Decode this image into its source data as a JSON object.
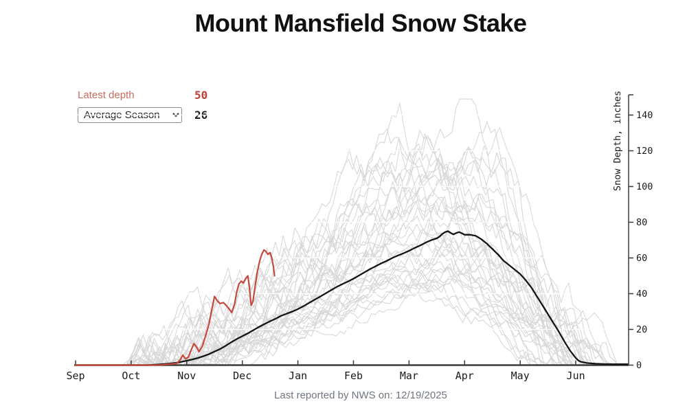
{
  "title": "Mount Mansfield Snow Stake",
  "controls": {
    "latest_depth_label": "Latest depth",
    "latest_depth_value": "50",
    "season_select": {
      "selected": "Average Season",
      "options": [
        "Average Season"
      ]
    },
    "average_value": "26"
  },
  "footer": {
    "text": "Last reported by NWS on: 12/19/2025"
  },
  "colors": {
    "current_season": "#c5483c",
    "latest_label": "#ca6a5e",
    "latest_value": "#c0413a",
    "average_season": "#141414",
    "historical": "#d6d6d6",
    "grid": "#ffffff",
    "axis": "#3a3a3a",
    "tick_text": "#1a1a1a",
    "footer_text": "#6f7680"
  },
  "chart_data": {
    "type": "line",
    "title": "Mount Mansfield Snow Stake",
    "x_axis": {
      "tick_labels": [
        "Sep",
        "Oct",
        "Nov",
        "Dec",
        "Jan",
        "Feb",
        "Mar",
        "Apr",
        "May",
        "Jun"
      ],
      "unit": "months from Sep 1",
      "range": [
        0,
        9.95
      ],
      "grid": false
    },
    "y_axis": {
      "label": "Snow Depth, inches",
      "ticks": [
        0,
        20,
        40,
        60,
        80,
        100,
        120,
        140
      ],
      "range": [
        0,
        151
      ],
      "side": "right",
      "grid": "white horizontal lines every 20"
    },
    "series": [
      {
        "name": "current_season",
        "legend": "Latest depth 50 (reported 12/19/2025)",
        "color_key": "current_season",
        "points": [
          [
            0,
            0
          ],
          [
            0.4,
            0
          ],
          [
            0.8,
            0
          ],
          [
            1.2,
            0
          ],
          [
            1.5,
            0
          ],
          [
            1.62,
            0.4
          ],
          [
            1.72,
            0.6
          ],
          [
            1.82,
            1
          ],
          [
            1.88,
            2.8
          ],
          [
            1.93,
            5.5
          ],
          [
            1.98,
            3.5
          ],
          [
            2.03,
            4.5
          ],
          [
            2.08,
            8.5
          ],
          [
            2.13,
            12
          ],
          [
            2.18,
            10
          ],
          [
            2.22,
            7.5
          ],
          [
            2.28,
            10.5
          ],
          [
            2.34,
            16.5
          ],
          [
            2.4,
            23
          ],
          [
            2.45,
            31
          ],
          [
            2.5,
            38.5
          ],
          [
            2.55,
            36
          ],
          [
            2.6,
            34.5
          ],
          [
            2.66,
            35
          ],
          [
            2.71,
            33.5
          ],
          [
            2.76,
            31.5
          ],
          [
            2.81,
            29.5
          ],
          [
            2.86,
            34
          ],
          [
            2.9,
            41
          ],
          [
            2.94,
            45.5
          ],
          [
            2.98,
            47
          ],
          [
            3.02,
            46
          ],
          [
            3.06,
            48.5
          ],
          [
            3.1,
            50
          ],
          [
            3.13,
            43
          ],
          [
            3.16,
            33.5
          ],
          [
            3.19,
            35.5
          ],
          [
            3.23,
            44
          ],
          [
            3.27,
            52
          ],
          [
            3.31,
            58
          ],
          [
            3.35,
            62
          ],
          [
            3.39,
            64.5
          ],
          [
            3.43,
            63.5
          ],
          [
            3.46,
            62
          ],
          [
            3.5,
            63
          ],
          [
            3.53,
            60
          ],
          [
            3.56,
            55
          ],
          [
            3.58,
            50
          ]
        ]
      },
      {
        "name": "average_season",
        "legend": "Average Season (value on 12/19: 26)",
        "color_key": "average_season",
        "points": [
          [
            0,
            0
          ],
          [
            0.6,
            0
          ],
          [
            1.0,
            0
          ],
          [
            1.3,
            0
          ],
          [
            1.5,
            0.4
          ],
          [
            1.7,
            0.9
          ],
          [
            1.85,
            1.5
          ],
          [
            2.0,
            2.5
          ],
          [
            2.1,
            3.2
          ],
          [
            2.2,
            4
          ],
          [
            2.3,
            5
          ],
          [
            2.4,
            6.2
          ],
          [
            2.5,
            7.6
          ],
          [
            2.6,
            9
          ],
          [
            2.7,
            10.8
          ],
          [
            2.8,
            12.8
          ],
          [
            2.9,
            14.6
          ],
          [
            3.0,
            16.2
          ],
          [
            3.1,
            17.8
          ],
          [
            3.2,
            19.6
          ],
          [
            3.3,
            21.4
          ],
          [
            3.4,
            23
          ],
          [
            3.5,
            24.6
          ],
          [
            3.6,
            26
          ],
          [
            3.7,
            27.6
          ],
          [
            3.8,
            28.8
          ],
          [
            3.9,
            30
          ],
          [
            4.0,
            31.4
          ],
          [
            4.1,
            33
          ],
          [
            4.2,
            34.8
          ],
          [
            4.3,
            36.6
          ],
          [
            4.4,
            38.4
          ],
          [
            4.5,
            40.2
          ],
          [
            4.6,
            42
          ],
          [
            4.7,
            43.8
          ],
          [
            4.8,
            45.4
          ],
          [
            4.9,
            46.8
          ],
          [
            5.0,
            48.4
          ],
          [
            5.1,
            50.2
          ],
          [
            5.2,
            52
          ],
          [
            5.3,
            53.8
          ],
          [
            5.4,
            55.4
          ],
          [
            5.5,
            57
          ],
          [
            5.6,
            58.4
          ],
          [
            5.7,
            60
          ],
          [
            5.8,
            61.4
          ],
          [
            5.9,
            62.6
          ],
          [
            6.0,
            64
          ],
          [
            6.1,
            65.6
          ],
          [
            6.2,
            67
          ],
          [
            6.3,
            68.6
          ],
          [
            6.4,
            70
          ],
          [
            6.5,
            71
          ],
          [
            6.55,
            72
          ],
          [
            6.6,
            73.5
          ],
          [
            6.65,
            74.5
          ],
          [
            6.7,
            75
          ],
          [
            6.75,
            74
          ],
          [
            6.8,
            73.2
          ],
          [
            6.85,
            74
          ],
          [
            6.9,
            74.5
          ],
          [
            6.95,
            73.8
          ],
          [
            7.0,
            73
          ],
          [
            7.1,
            73
          ],
          [
            7.2,
            72.4
          ],
          [
            7.3,
            70.5
          ],
          [
            7.4,
            68
          ],
          [
            7.5,
            65
          ],
          [
            7.6,
            62
          ],
          [
            7.7,
            58.5
          ],
          [
            7.8,
            56
          ],
          [
            7.9,
            53.5
          ],
          [
            8.0,
            51
          ],
          [
            8.1,
            47.5
          ],
          [
            8.2,
            43.5
          ],
          [
            8.3,
            38.5
          ],
          [
            8.4,
            33.5
          ],
          [
            8.5,
            28.5
          ],
          [
            8.6,
            23.5
          ],
          [
            8.7,
            18.5
          ],
          [
            8.8,
            13
          ],
          [
            8.9,
            8
          ],
          [
            9.0,
            4
          ],
          [
            9.05,
            2.5
          ],
          [
            9.1,
            1.8
          ],
          [
            9.2,
            1.2
          ],
          [
            9.35,
            0.8
          ],
          [
            9.5,
            0.6
          ],
          [
            9.7,
            0.5
          ],
          [
            9.93,
            0.5
          ]
        ]
      }
    ],
    "historical_ensemble": {
      "description": "Past seasons' daily snow-depth traces shown as light-gray spaghetti lines",
      "count": 38,
      "seed": 11,
      "color_key": "historical",
      "start_month_range": [
        1.0,
        2.3
      ],
      "peak_month_range": [
        5.5,
        7.7
      ],
      "peak_value_range": [
        48,
        148
      ],
      "end_month_range": [
        8.2,
        9.8
      ]
    }
  }
}
